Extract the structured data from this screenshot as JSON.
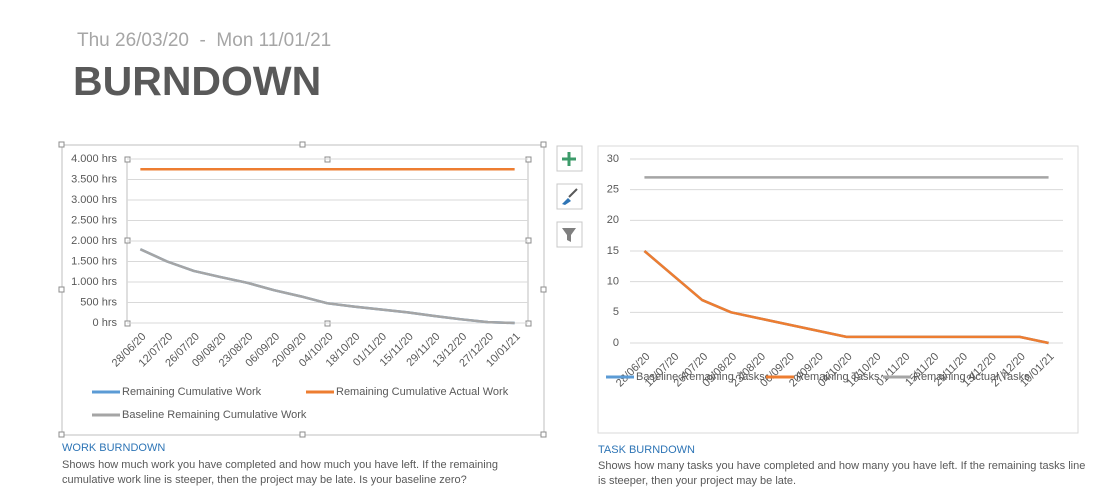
{
  "header": {
    "date_range": "Thu 26/03/20  -  Mon 11/01/21",
    "title": "BURNDOWN"
  },
  "chart_data": [
    {
      "type": "line",
      "title": "WORK BURNDOWN",
      "subtitle": "Shows how much work you have completed and how much you have left. If the remaining cumulative work line is steeper, then the project may be late. Is your baseline zero?",
      "categories": [
        "28/06/20",
        "12/07/20",
        "26/07/20",
        "09/08/20",
        "23/08/20",
        "06/09/20",
        "20/09/20",
        "04/10/20",
        "18/10/20",
        "01/11/20",
        "15/11/20",
        "29/11/20",
        "13/12/20",
        "27/12/20",
        "10/01/21"
      ],
      "series": [
        {
          "name": "Remaining Cumulative Work",
          "color": "#5b9bd5",
          "values": [
            1800,
            1500,
            1270,
            1120,
            980,
            800,
            650,
            480,
            400,
            330,
            260,
            170,
            90,
            20,
            0
          ]
        },
        {
          "name": "Remaining Cumulative Actual Work",
          "color": "#ed7d31",
          "values": [
            3750,
            3750,
            3750,
            3750,
            3750,
            3750,
            3750,
            3750,
            3750,
            3750,
            3750,
            3750,
            3750,
            3750,
            3750
          ]
        },
        {
          "name": "Baseline Remaining Cumulative Work",
          "color": "#a5a5a5",
          "values": [
            1800,
            1500,
            1270,
            1120,
            980,
            800,
            650,
            480,
            400,
            330,
            260,
            170,
            90,
            20,
            0
          ]
        }
      ],
      "ylim": [
        0,
        4000
      ],
      "yticks": [
        {
          "value": 0,
          "label": "0 hrs"
        },
        {
          "value": 500,
          "label": "500 hrs"
        },
        {
          "value": 1000,
          "label": "1.000 hrs"
        },
        {
          "value": 1500,
          "label": "1.500 hrs"
        },
        {
          "value": 2000,
          "label": "2.000 hrs"
        },
        {
          "value": 2500,
          "label": "2.500 hrs"
        },
        {
          "value": 3000,
          "label": "3.000 hrs"
        },
        {
          "value": 3500,
          "label": "3.500 hrs"
        },
        {
          "value": 4000,
          "label": "4.000 hrs"
        }
      ],
      "grid": true
    },
    {
      "type": "line",
      "title": "TASK BURNDOWN",
      "subtitle": "Shows how many tasks you have completed and how many you have left. If the remaining tasks line is steeper, then your project may be late.",
      "categories": [
        "28/06/20",
        "12/07/20",
        "26/07/20",
        "09/08/20",
        "23/08/20",
        "06/09/20",
        "20/09/20",
        "04/10/20",
        "18/10/20",
        "01/11/20",
        "15/11/20",
        "29/11/20",
        "13/12/20",
        "27/12/20",
        "10/01/21"
      ],
      "series": [
        {
          "name": "Baseline Remaining Tasks",
          "color": "#5b9bd5",
          "values": [
            15,
            11,
            7,
            5,
            4,
            3,
            2,
            1,
            1,
            1,
            1,
            1,
            1,
            1,
            0
          ]
        },
        {
          "name": "Remaining Tasks",
          "color": "#ed7d31",
          "values": [
            15,
            11,
            7,
            5,
            4,
            3,
            2,
            1,
            1,
            1,
            1,
            1,
            1,
            1,
            0
          ]
        },
        {
          "name": "Remaining Actual Tasks",
          "color": "#a5a5a5",
          "values": [
            27,
            27,
            27,
            27,
            27,
            27,
            27,
            27,
            27,
            27,
            27,
            27,
            27,
            27,
            27
          ]
        }
      ],
      "ylim": [
        0,
        30
      ],
      "yticks": [
        0,
        5,
        10,
        15,
        20,
        25,
        30
      ],
      "grid": true
    }
  ]
}
